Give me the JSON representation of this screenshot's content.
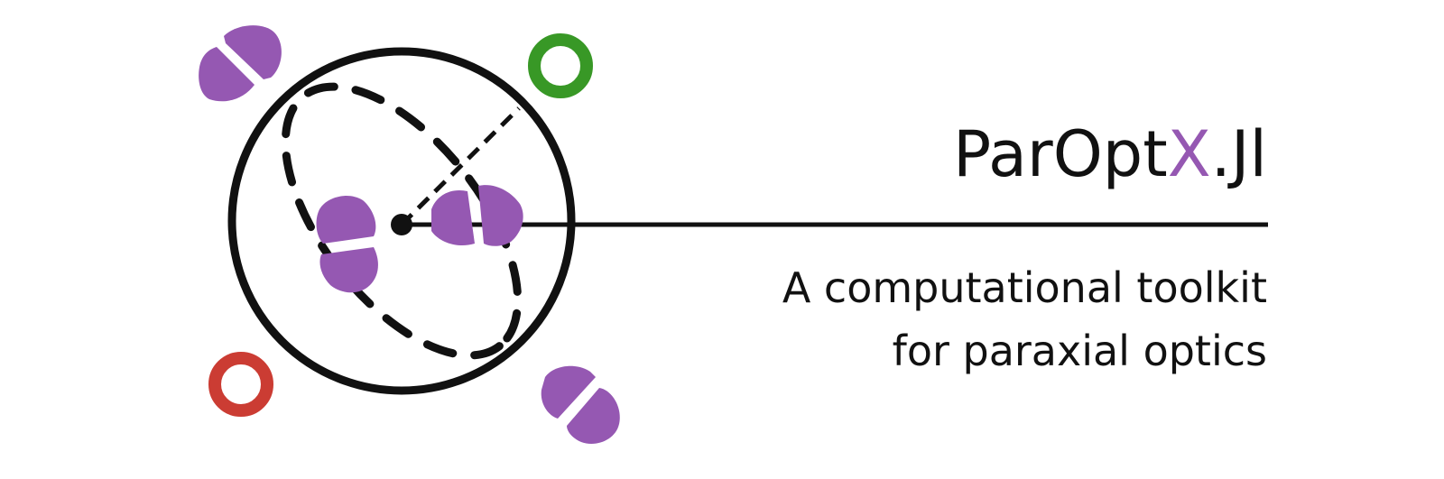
{
  "title": {
    "prefix": "ParOpt",
    "accent": "X",
    "suffix": ".Jl"
  },
  "subtitle": {
    "line1": "A computational toolkit",
    "line2": "for paraxial optics"
  },
  "colors": {
    "accent": "#9558b2",
    "ink": "#111111",
    "green": "#389826",
    "red": "#cb3c33"
  }
}
